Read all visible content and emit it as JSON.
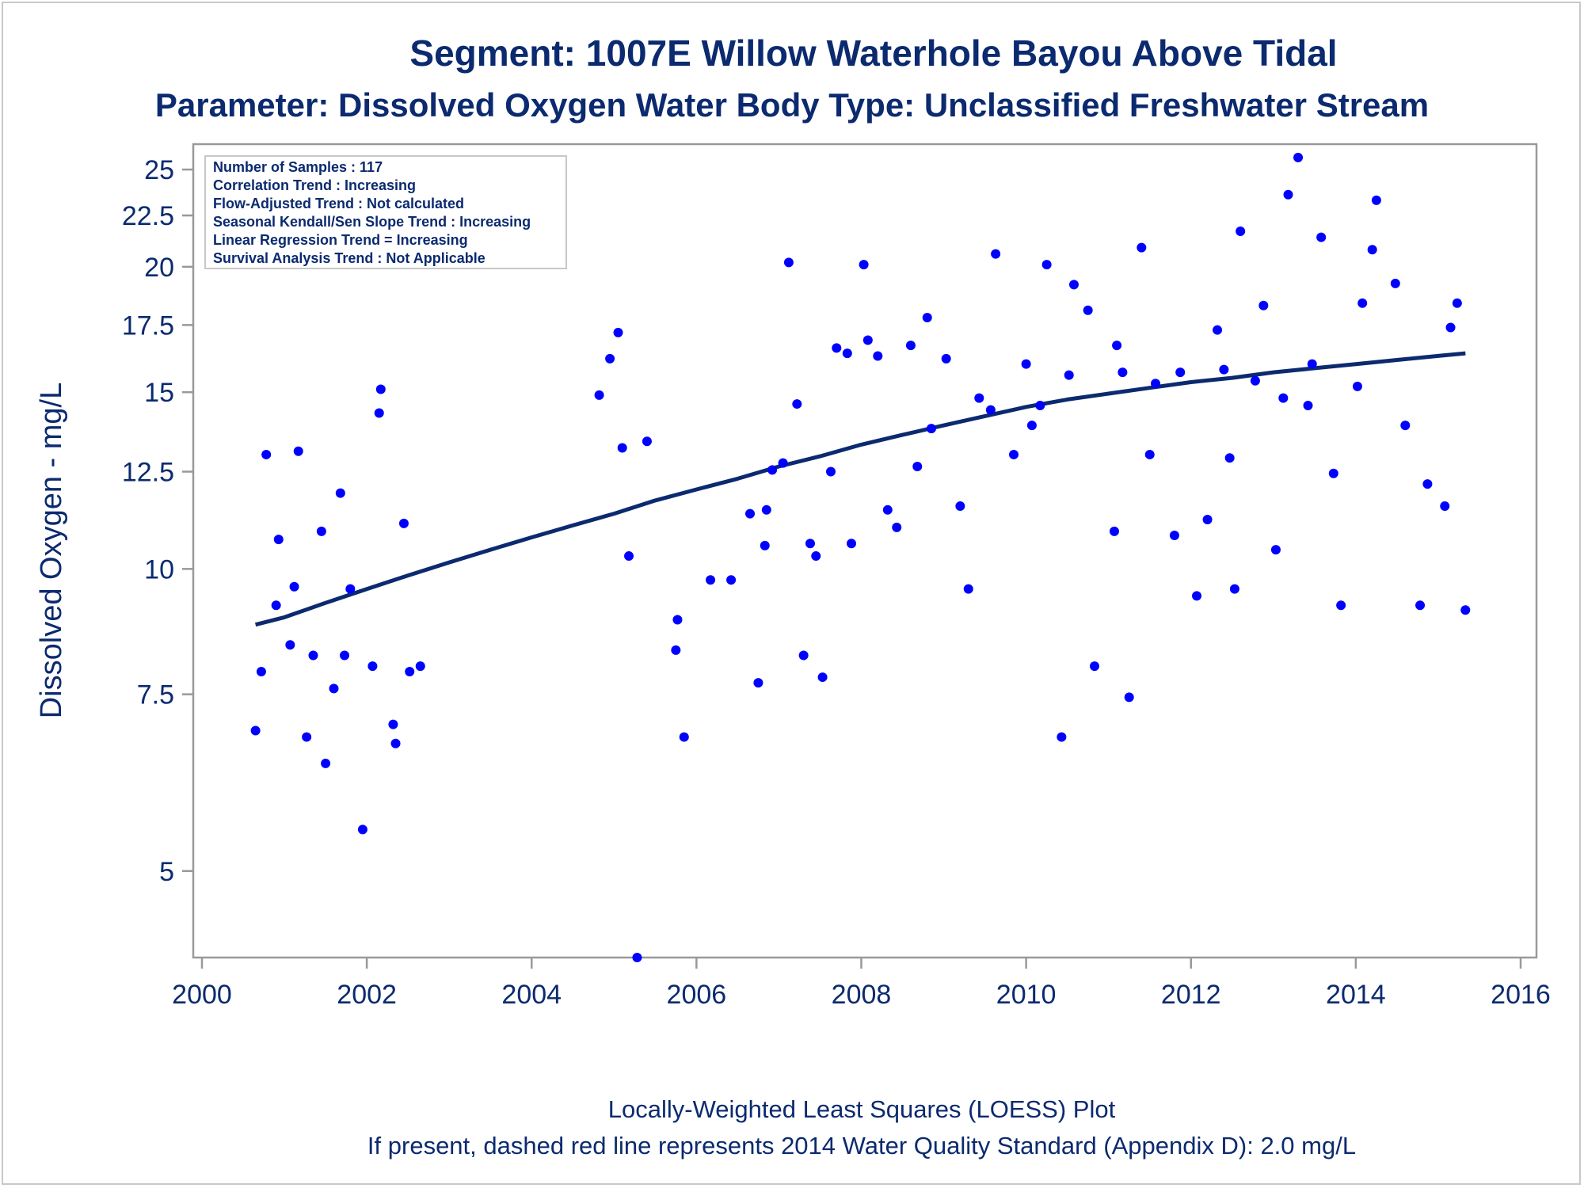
{
  "title_line1": "Segment: 1007E  Willow Waterhole Bayou Above Tidal",
  "title_line2": "Parameter: Dissolved Oxygen   Water Body Type: Unclassified Freshwater Stream",
  "footnote1": "Locally-Weighted Least Squares (LOESS) Plot",
  "footnote2": "If present, dashed red line represents 2014 Water Quality Standard (Appendix D): 2.0 mg/L",
  "stats_box": [
    "Number of Samples : 117",
    "Correlation Trend : Increasing",
    "Flow-Adjusted Trend : Not calculated",
    "Seasonal Kendall/Sen Slope Trend : Increasing",
    "Linear Regression Trend = Increasing",
    "Survival Analysis Trend : Not Applicable"
  ],
  "colors": {
    "text": "#0b2a6f",
    "points": "#0000ff",
    "loess": "#0b2a6f",
    "axis": "#999999"
  },
  "chart_data": {
    "type": "scatter",
    "title": "Segment: 1007E  Willow Waterhole Bayou Above Tidal",
    "subtitle": "Parameter: Dissolved Oxygen   Water Body Type: Unclassified Freshwater Stream",
    "xlabel": "",
    "ylabel": "Dissolved Oxygen - mg/L",
    "x_scale": "linear",
    "y_scale": "log",
    "xlim": [
      2000,
      2016
    ],
    "ylim": [
      4.1,
      26.5
    ],
    "x_ticks": [
      2000,
      2002,
      2004,
      2006,
      2008,
      2010,
      2012,
      2014,
      2016
    ],
    "y_ticks": [
      5,
      7.5,
      10,
      12.5,
      15,
      17.5,
      20,
      22.5,
      25
    ],
    "y_tick_labels": [
      "5",
      "7.5",
      "10",
      "12.5",
      "15",
      "17.5",
      "20",
      "22.5",
      "25"
    ],
    "grid": false,
    "legend_position": "top-left",
    "series": [
      {
        "kind": "points",
        "x": [
          2000.65,
          2000.72,
          2000.78,
          2000.9,
          2000.93,
          2001.07,
          2001.12,
          2001.17,
          2001.27,
          2001.35,
          2001.45,
          2001.5,
          2001.6,
          2001.68,
          2001.73,
          2001.8,
          2001.95,
          2002.07,
          2002.15,
          2002.17,
          2002.32,
          2002.35,
          2002.45,
          2002.52,
          2002.65,
          2004.82,
          2004.95,
          2005.05,
          2005.1,
          2005.18,
          2005.28,
          2005.4,
          2005.75,
          2005.77,
          2005.85,
          2006.17,
          2006.42,
          2006.65,
          2006.75,
          2006.83,
          2006.85,
          2006.92,
          2007.05,
          2007.12,
          2007.22,
          2007.3,
          2007.38,
          2007.45,
          2007.53,
          2007.63,
          2007.7,
          2007.83,
          2007.88,
          2008.03,
          2008.08,
          2008.2,
          2008.32,
          2008.43,
          2008.6,
          2008.68,
          2008.8,
          2008.85,
          2009.03,
          2009.2,
          2009.3,
          2009.43,
          2009.57,
          2009.63,
          2009.85,
          2010.0,
          2010.07,
          2010.17,
          2010.25,
          2010.43,
          2010.52,
          2010.58,
          2010.75,
          2010.83,
          2011.07,
          2011.1,
          2011.17,
          2011.25,
          2011.4,
          2011.5,
          2011.57,
          2011.8,
          2011.87,
          2012.07,
          2012.2,
          2012.32,
          2012.4,
          2012.47,
          2012.53,
          2012.6,
          2012.78,
          2012.88,
          2013.03,
          2013.12,
          2013.18,
          2013.3,
          2013.42,
          2013.47,
          2013.58,
          2013.73,
          2013.82,
          2014.02,
          2014.08,
          2014.2,
          2014.25,
          2014.48,
          2014.6,
          2014.78,
          2014.87,
          2015.08,
          2015.15,
          2015.23,
          2015.33
        ],
        "y": [
          6.9,
          7.9,
          13.0,
          9.2,
          10.7,
          8.4,
          9.6,
          13.1,
          6.8,
          8.2,
          10.9,
          6.4,
          7.6,
          11.9,
          8.2,
          9.55,
          5.5,
          8.0,
          14.3,
          15.1,
          7.0,
          6.7,
          11.1,
          7.9,
          8.0,
          14.9,
          16.2,
          17.2,
          13.2,
          10.3,
          4.1,
          13.4,
          8.3,
          8.9,
          6.8,
          9.75,
          9.75,
          11.35,
          7.7,
          10.55,
          11.45,
          12.55,
          12.75,
          20.2,
          14.6,
          8.2,
          10.6,
          10.3,
          7.8,
          12.5,
          16.6,
          16.4,
          10.6,
          20.1,
          16.9,
          16.3,
          11.45,
          11.0,
          16.7,
          12.65,
          17.8,
          13.8,
          16.2,
          11.55,
          9.55,
          14.8,
          14.4,
          20.6,
          13.0,
          16.0,
          13.9,
          14.55,
          20.1,
          6.8,
          15.6,
          19.2,
          18.1,
          8.0,
          10.9,
          16.7,
          15.7,
          7.45,
          20.9,
          13.0,
          15.3,
          10.8,
          15.7,
          9.4,
          11.2,
          17.3,
          15.8,
          12.9,
          9.55,
          21.7,
          15.4,
          18.3,
          10.45,
          14.8,
          23.6,
          25.7,
          14.55,
          16.0,
          21.4,
          12.45,
          9.2,
          15.2,
          18.4,
          20.8,
          23.3,
          19.25,
          13.9,
          9.2,
          12.15,
          11.55,
          17.4,
          18.4,
          9.1
        ]
      },
      {
        "name": "LOESS",
        "kind": "line",
        "x": [
          2000.65,
          2001.0,
          2001.5,
          2002.0,
          2002.5,
          2003.0,
          2003.5,
          2004.0,
          2004.5,
          2005.0,
          2005.5,
          2006.0,
          2006.5,
          2007.0,
          2007.5,
          2008.0,
          2008.5,
          2009.0,
          2009.5,
          2010.0,
          2010.5,
          2011.0,
          2011.5,
          2012.0,
          2012.5,
          2013.0,
          2013.5,
          2014.0,
          2014.5,
          2015.0,
          2015.33
        ],
        "y": [
          8.8,
          8.95,
          9.25,
          9.55,
          9.85,
          10.15,
          10.45,
          10.75,
          11.05,
          11.35,
          11.7,
          12.0,
          12.3,
          12.65,
          12.95,
          13.3,
          13.6,
          13.9,
          14.2,
          14.5,
          14.75,
          14.95,
          15.15,
          15.35,
          15.5,
          15.7,
          15.85,
          16.0,
          16.15,
          16.3,
          16.4
        ]
      }
    ]
  }
}
